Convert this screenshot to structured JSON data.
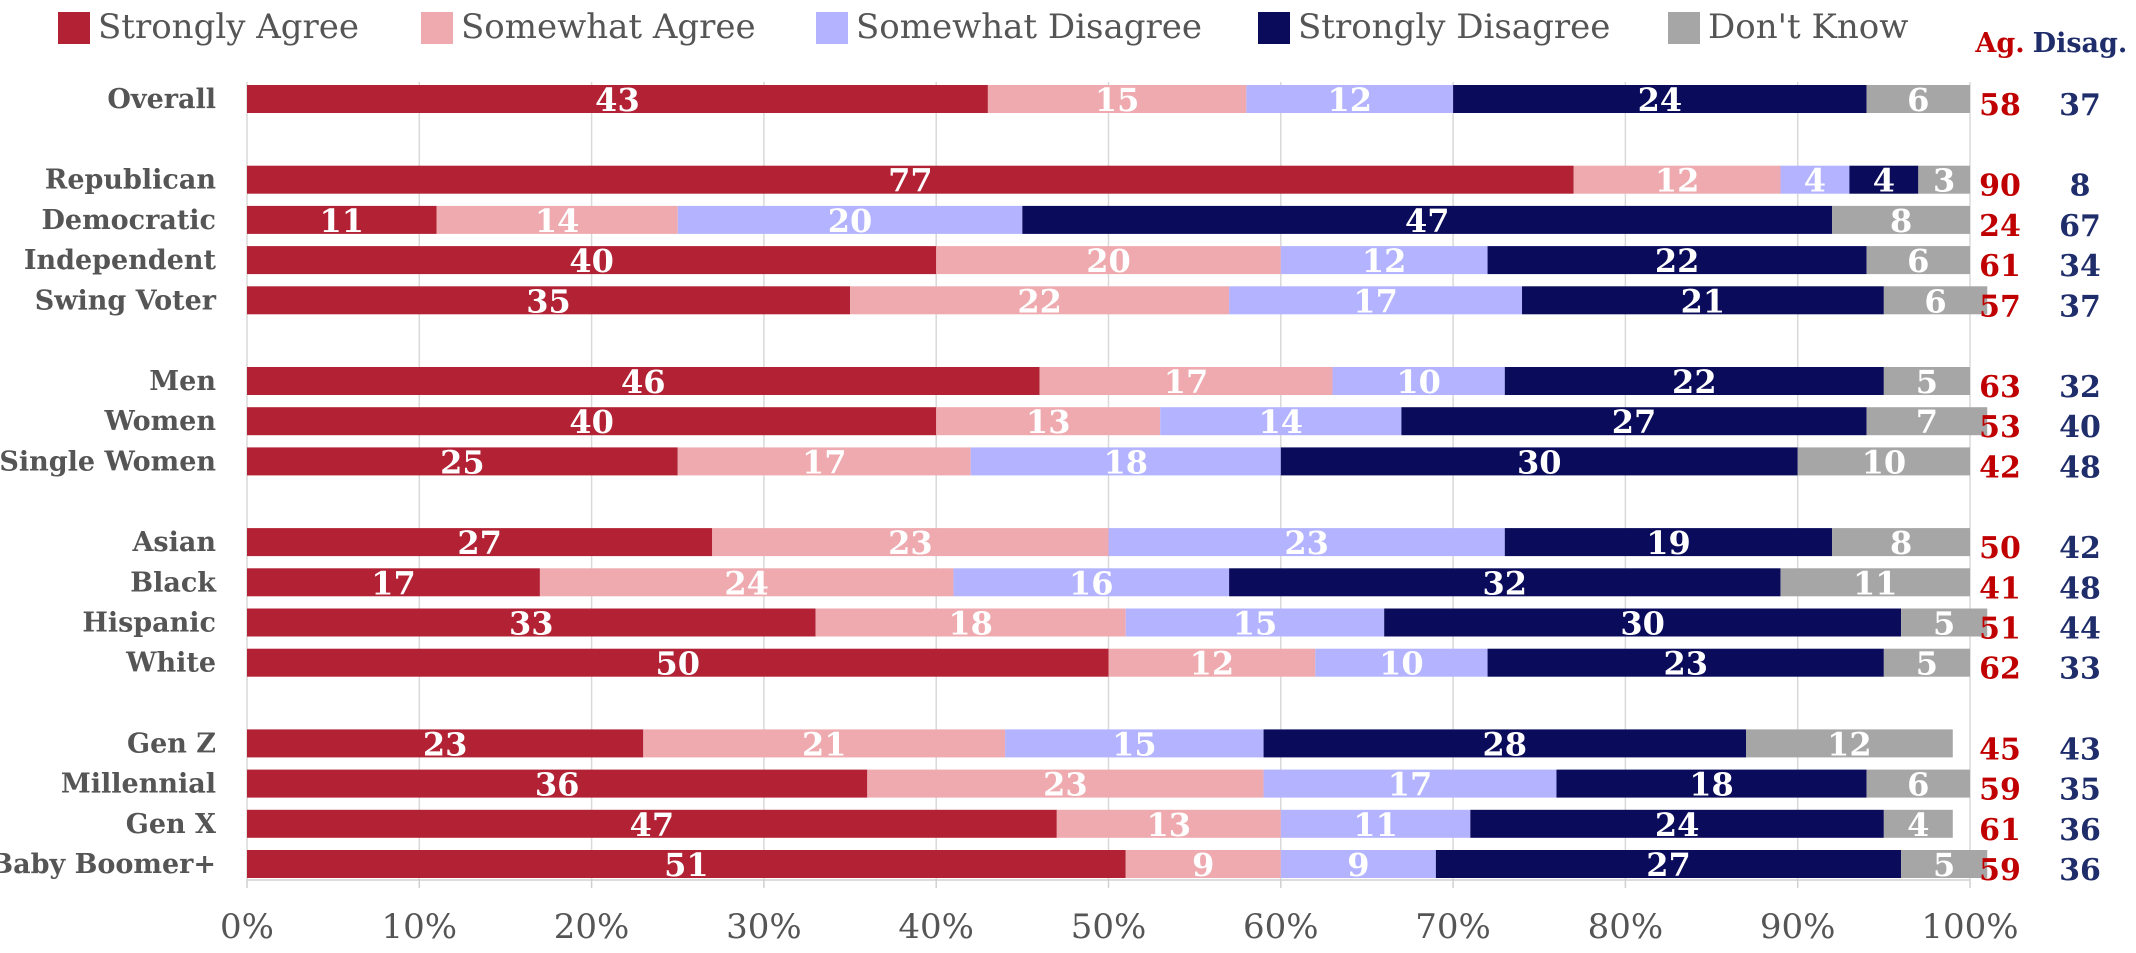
{
  "chart_data": {
    "type": "bar",
    "orientation": "horizontal",
    "stacked": true,
    "legend_position": "top",
    "grid": true,
    "xlim": [
      0,
      100
    ],
    "x_tick_labels": [
      "0%",
      "10%",
      "20%",
      "30%",
      "40%",
      "50%",
      "60%",
      "70%",
      "80%",
      "90%",
      "100%"
    ],
    "legend": [
      {
        "name": "Strongly Agree",
        "color": "#b22234"
      },
      {
        "name": "Somewhat Agree",
        "color": "#eeaaaf"
      },
      {
        "name": "Somewhat Disagree",
        "color": "#b3b3ff"
      },
      {
        "name": "Strongly Disagree",
        "color": "#0b0b5c"
      },
      {
        "name": "Don't Know",
        "color": "#a6a6a6"
      }
    ],
    "net_columns": [
      {
        "label": "Ag.",
        "color": "#c00000"
      },
      {
        "label": "Disag.",
        "color": "#1f2d6b"
      }
    ],
    "groups": [
      {
        "rows": [
          {
            "label": "Overall",
            "values": [
              43,
              15,
              12,
              24,
              6
            ],
            "agree": 58,
            "disagree": 37
          }
        ]
      },
      {
        "rows": [
          {
            "label": "Republican",
            "values": [
              77,
              12,
              4,
              4,
              3
            ],
            "agree": 90,
            "disagree": 8
          },
          {
            "label": "Democratic",
            "values": [
              11,
              14,
              20,
              47,
              8
            ],
            "agree": 24,
            "disagree": 67
          },
          {
            "label": "Independent",
            "values": [
              40,
              20,
              12,
              22,
              6
            ],
            "agree": 61,
            "disagree": 34
          },
          {
            "label": "Swing Voter",
            "values": [
              35,
              22,
              17,
              21,
              6
            ],
            "agree": 57,
            "disagree": 37
          }
        ]
      },
      {
        "rows": [
          {
            "label": "Men",
            "values": [
              46,
              17,
              10,
              22,
              5
            ],
            "agree": 63,
            "disagree": 32
          },
          {
            "label": "Women",
            "values": [
              40,
              13,
              14,
              27,
              7
            ],
            "agree": 53,
            "disagree": 40
          },
          {
            "label": "Single Women",
            "values": [
              25,
              17,
              18,
              30,
              10
            ],
            "agree": 42,
            "disagree": 48
          }
        ]
      },
      {
        "rows": [
          {
            "label": "Asian",
            "values": [
              27,
              23,
              23,
              19,
              8
            ],
            "agree": 50,
            "disagree": 42
          },
          {
            "label": "Black",
            "values": [
              17,
              24,
              16,
              32,
              11
            ],
            "agree": 41,
            "disagree": 48
          },
          {
            "label": "Hispanic",
            "values": [
              33,
              18,
              15,
              30,
              5
            ],
            "agree": 51,
            "disagree": 44
          },
          {
            "label": "White",
            "values": [
              50,
              12,
              10,
              23,
              5
            ],
            "agree": 62,
            "disagree": 33
          }
        ]
      },
      {
        "rows": [
          {
            "label": "Gen Z",
            "values": [
              23,
              21,
              15,
              28,
              12
            ],
            "agree": 45,
            "disagree": 43
          },
          {
            "label": "Millennial",
            "values": [
              36,
              23,
              17,
              18,
              6
            ],
            "agree": 59,
            "disagree": 35
          },
          {
            "label": "Gen X",
            "values": [
              47,
              13,
              11,
              24,
              4
            ],
            "agree": 61,
            "disagree": 36
          },
          {
            "label": "Baby Boomer+",
            "values": [
              51,
              9,
              9,
              27,
              5
            ],
            "agree": 59,
            "disagree": 36
          }
        ]
      }
    ]
  }
}
